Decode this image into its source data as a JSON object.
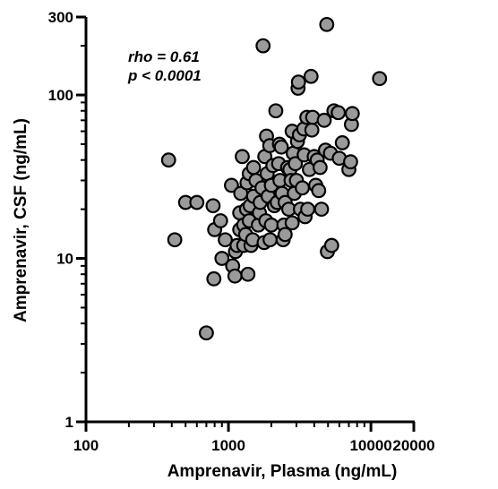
{
  "chart_data": {
    "type": "scatter",
    "x_scale": "log",
    "y_scale": "log",
    "xlabel": "Amprenavir, Plasma (ng/mL)",
    "ylabel": "Amprenavir, CSF (ng/mL)",
    "xlim": [
      100,
      20000
    ],
    "ylim": [
      1,
      300
    ],
    "x_ticks": [
      {
        "value": 100,
        "label": "100"
      },
      {
        "value": 1000,
        "label": "1000"
      },
      {
        "value": 10000,
        "label": "10000"
      },
      {
        "value": 20000,
        "label": "20000"
      }
    ],
    "y_ticks": [
      {
        "value": 1,
        "label": "1"
      },
      {
        "value": 10,
        "label": "10"
      },
      {
        "value": 100,
        "label": "100"
      },
      {
        "value": 300,
        "label": "300"
      }
    ],
    "annotations": [
      "rho = 0.61",
      "p < 0.0001"
    ],
    "grid": false,
    "marker_color": "#9a9a9a",
    "marker_edge": "#000000",
    "points": [
      [
        380,
        40
      ],
      [
        420,
        13
      ],
      [
        500,
        22
      ],
      [
        600,
        22
      ],
      [
        700,
        3.5
      ],
      [
        780,
        21
      ],
      [
        790,
        7.5
      ],
      [
        800,
        15
      ],
      [
        880,
        17
      ],
      [
        900,
        10
      ],
      [
        950,
        13
      ],
      [
        1050,
        28
      ],
      [
        1070,
        9
      ],
      [
        1110,
        7.8
      ],
      [
        1120,
        11
      ],
      [
        1150,
        12
      ],
      [
        1200,
        15
      ],
      [
        1200,
        19
      ],
      [
        1220,
        25
      ],
      [
        1250,
        42
      ],
      [
        1280,
        12
      ],
      [
        1280,
        16
      ],
      [
        1320,
        14
      ],
      [
        1340,
        20
      ],
      [
        1350,
        29
      ],
      [
        1370,
        8
      ],
      [
        1400,
        17
      ],
      [
        1400,
        33
      ],
      [
        1420,
        21
      ],
      [
        1440,
        12
      ],
      [
        1480,
        13
      ],
      [
        1500,
        24
      ],
      [
        1500,
        36
      ],
      [
        1560,
        30
      ],
      [
        1620,
        16
      ],
      [
        1650,
        19
      ],
      [
        1670,
        22
      ],
      [
        1720,
        27
      ],
      [
        1750,
        200
      ],
      [
        1780,
        12.5
      ],
      [
        1800,
        42
      ],
      [
        1830,
        17
      ],
      [
        1850,
        56
      ],
      [
        1870,
        33
      ],
      [
        1900,
        24
      ],
      [
        1950,
        49
      ],
      [
        1960,
        13
      ],
      [
        2000,
        16
      ],
      [
        2000,
        28
      ],
      [
        2050,
        37
      ],
      [
        2100,
        21
      ],
      [
        2150,
        80
      ],
      [
        2200,
        22
      ],
      [
        2250,
        38
      ],
      [
        2280,
        50
      ],
      [
        2300,
        30
      ],
      [
        2350,
        48
      ],
      [
        2380,
        25
      ],
      [
        2420,
        13
      ],
      [
        2450,
        16
      ],
      [
        2500,
        14
      ],
      [
        2500,
        22
      ],
      [
        2600,
        36
      ],
      [
        2650,
        20
      ],
      [
        2700,
        35
      ],
      [
        2750,
        30
      ],
      [
        2800,
        60
      ],
      [
        2800,
        16.5
      ],
      [
        2850,
        44
      ],
      [
        2900,
        25
      ],
      [
        2950,
        38
      ],
      [
        3000,
        30
      ],
      [
        3050,
        52
      ],
      [
        3080,
        110
      ],
      [
        3100,
        120
      ],
      [
        3150,
        57
      ],
      [
        3200,
        20
      ],
      [
        3300,
        27
      ],
      [
        3380,
        62
      ],
      [
        3400,
        43
      ],
      [
        3450,
        18
      ],
      [
        3550,
        73
      ],
      [
        3600,
        20
      ],
      [
        3700,
        35
      ],
      [
        3800,
        130
      ],
      [
        3850,
        61
      ],
      [
        3900,
        73
      ],
      [
        4000,
        42
      ],
      [
        4100,
        28
      ],
      [
        4200,
        40
      ],
      [
        4300,
        26
      ],
      [
        4400,
        36
      ],
      [
        4500,
        20
      ],
      [
        4700,
        70
      ],
      [
        4800,
        46
      ],
      [
        4900,
        270
      ],
      [
        4950,
        11
      ],
      [
        5200,
        44
      ],
      [
        5300,
        12
      ],
      [
        5500,
        80
      ],
      [
        5900,
        78
      ],
      [
        6000,
        41
      ],
      [
        6300,
        51
      ],
      [
        7000,
        35
      ],
      [
        7200,
        39
      ],
      [
        7300,
        66
      ],
      [
        7400,
        77
      ],
      [
        11500,
        126
      ]
    ]
  }
}
